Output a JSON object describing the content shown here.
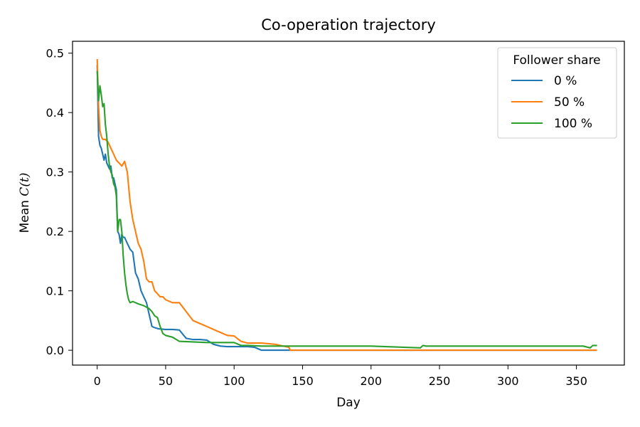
{
  "chart_data": {
    "type": "line",
    "title": "Co-operation trajectory",
    "xlabel": "Day",
    "ylabel_text": "Mean ",
    "ylabel_math": "C(t)",
    "xlim": [
      -18,
      385
    ],
    "ylim": [
      -0.025,
      0.52
    ],
    "xticks": [
      0,
      50,
      100,
      150,
      200,
      250,
      300,
      350
    ],
    "yticks": [
      0.0,
      0.1,
      0.2,
      0.3,
      0.4,
      0.5
    ],
    "ytick_labels": [
      "0.0",
      "0.1",
      "0.2",
      "0.3",
      "0.4",
      "0.5"
    ],
    "legend_title": "Follower share",
    "legend_position": "top-right",
    "grid": false,
    "series": [
      {
        "name": "0 %",
        "color": "#1f77b4",
        "x": [
          0,
          1,
          2,
          3,
          4,
          5,
          6,
          7,
          8,
          9,
          10,
          11,
          12,
          13,
          14,
          15,
          16,
          17,
          18,
          19,
          20,
          22,
          24,
          26,
          28,
          30,
          32,
          34,
          36,
          38,
          40,
          42,
          45,
          50,
          55,
          60,
          65,
          70,
          75,
          80,
          85,
          90,
          95,
          100,
          105,
          110,
          115,
          120,
          125,
          130,
          140,
          200,
          300,
          365
        ],
        "y": [
          0.48,
          0.36,
          0.345,
          0.34,
          0.33,
          0.32,
          0.33,
          0.315,
          0.31,
          0.305,
          0.31,
          0.29,
          0.29,
          0.28,
          0.27,
          0.2,
          0.195,
          0.18,
          0.195,
          0.19,
          0.19,
          0.18,
          0.17,
          0.165,
          0.13,
          0.12,
          0.1,
          0.09,
          0.08,
          0.06,
          0.04,
          0.038,
          0.036,
          0.035,
          0.035,
          0.034,
          0.02,
          0.018,
          0.018,
          0.017,
          0.01,
          0.007,
          0.006,
          0.006,
          0.006,
          0.006,
          0.005,
          0.0,
          0.0,
          0.0,
          0.0,
          0.0,
          0.0,
          0.0
        ]
      },
      {
        "name": "50 %",
        "color": "#ff7f0e",
        "x": [
          0,
          1,
          2,
          3,
          4,
          5,
          6,
          8,
          10,
          12,
          14,
          16,
          18,
          20,
          22,
          24,
          26,
          28,
          30,
          32,
          34,
          36,
          38,
          40,
          42,
          44,
          46,
          48,
          50,
          55,
          60,
          65,
          70,
          75,
          80,
          85,
          90,
          95,
          100,
          105,
          110,
          120,
          130,
          140,
          141,
          200,
          300,
          365
        ],
        "y": [
          0.49,
          0.41,
          0.37,
          0.36,
          0.355,
          0.355,
          0.355,
          0.35,
          0.34,
          0.33,
          0.32,
          0.315,
          0.31,
          0.318,
          0.3,
          0.25,
          0.22,
          0.2,
          0.18,
          0.17,
          0.15,
          0.12,
          0.115,
          0.115,
          0.1,
          0.095,
          0.09,
          0.09,
          0.085,
          0.08,
          0.08,
          0.065,
          0.05,
          0.045,
          0.04,
          0.035,
          0.03,
          0.025,
          0.024,
          0.015,
          0.012,
          0.012,
          0.01,
          0.005,
          0.0,
          0.0,
          0.0,
          0.0
        ]
      },
      {
        "name": "100 %",
        "color": "#2ca02c",
        "x": [
          0,
          1,
          2,
          3,
          4,
          5,
          6,
          7,
          8,
          9,
          10,
          11,
          12,
          13,
          14,
          15,
          16,
          17,
          18,
          19,
          20,
          21,
          22,
          23,
          24,
          26,
          28,
          30,
          34,
          38,
          40,
          42,
          44,
          46,
          48,
          50,
          55,
          60,
          70,
          80,
          90,
          100,
          105,
          110,
          120,
          130,
          140,
          200,
          236,
          238,
          240,
          300,
          355,
          360,
          362,
          365
        ],
        "y": [
          0.47,
          0.42,
          0.445,
          0.43,
          0.41,
          0.415,
          0.38,
          0.36,
          0.33,
          0.31,
          0.3,
          0.295,
          0.28,
          0.275,
          0.26,
          0.2,
          0.22,
          0.22,
          0.2,
          0.16,
          0.13,
          0.11,
          0.095,
          0.085,
          0.08,
          0.082,
          0.08,
          0.078,
          0.075,
          0.07,
          0.065,
          0.058,
          0.055,
          0.04,
          0.028,
          0.025,
          0.022,
          0.015,
          0.014,
          0.013,
          0.013,
          0.013,
          0.008,
          0.008,
          0.007,
          0.007,
          0.007,
          0.007,
          0.004,
          0.008,
          0.007,
          0.007,
          0.007,
          0.004,
          0.008,
          0.008
        ]
      }
    ]
  }
}
